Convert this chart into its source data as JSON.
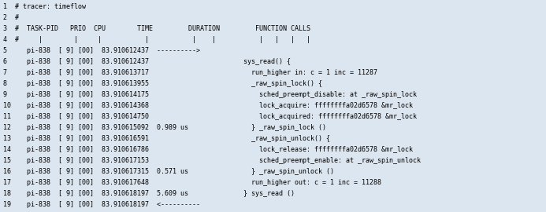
{
  "background_color": "#dce6f1",
  "text_color": "#000000",
  "font_size": 6.0,
  "figwidth": 6.93,
  "figheight": 2.7,
  "dpi": 100,
  "lines": [
    "1  # tracer: timeflow",
    "2  #",
    "3  #  TASK-PID   PRIO  CPU        TIME         DURATION         FUNCTION CALLS",
    "4  #     |        |     |           |           |    |           |   |   |   |",
    "5     pi-838  [ 9] [00]  83.910612437  ---------->",
    "6     pi-838  [ 9] [00]  83.910612437                        sys_read() {",
    "7     pi-838  [ 9] [00]  83.910613717                          run_higher in: c = 1 inc = 11287",
    "8     pi-838  [ 9] [00]  83.910613955                          _raw_spin_lock() {",
    "9     pi-838  [ 9] [00]  83.910614175                            sched_preempt_disable: at _raw_spin_lock",
    "10    pi-838  [ 9] [00]  83.910614368                            lock_acquire: ffffffffa02d6578 &mr_lock",
    "11    pi-838  [ 9] [00]  83.910614750                            lock_acquired: ffffffffa02d6578 &mr_lock",
    "12    pi-838  [ 9] [00]  83.910615092  0.989 us                } _raw_spin_lock ()",
    "13    pi-838  [ 9] [00]  83.910616591                          _raw_spin_unlock() {",
    "14    pi-838  [ 9] [00]  83.910616786                            lock_release: ffffffffa02d6578 &mr_lock",
    "15    pi-838  [ 9] [00]  83.910617153                            sched_preempt_enable: at _raw_spin_unlock",
    "16    pi-838  [ 9] [00]  83.910617315  0.571 us                } _raw_spin_unlock ()",
    "17    pi-838  [ 9] [00]  83.910617648                          run_higher out: c = 1 inc = 11288",
    "18    pi-838  [ 9] [00]  83.910618197  5.609 us              } sys_read ()",
    "19    pi-838  [ 9] [00]  83.910618197  <----------"
  ]
}
